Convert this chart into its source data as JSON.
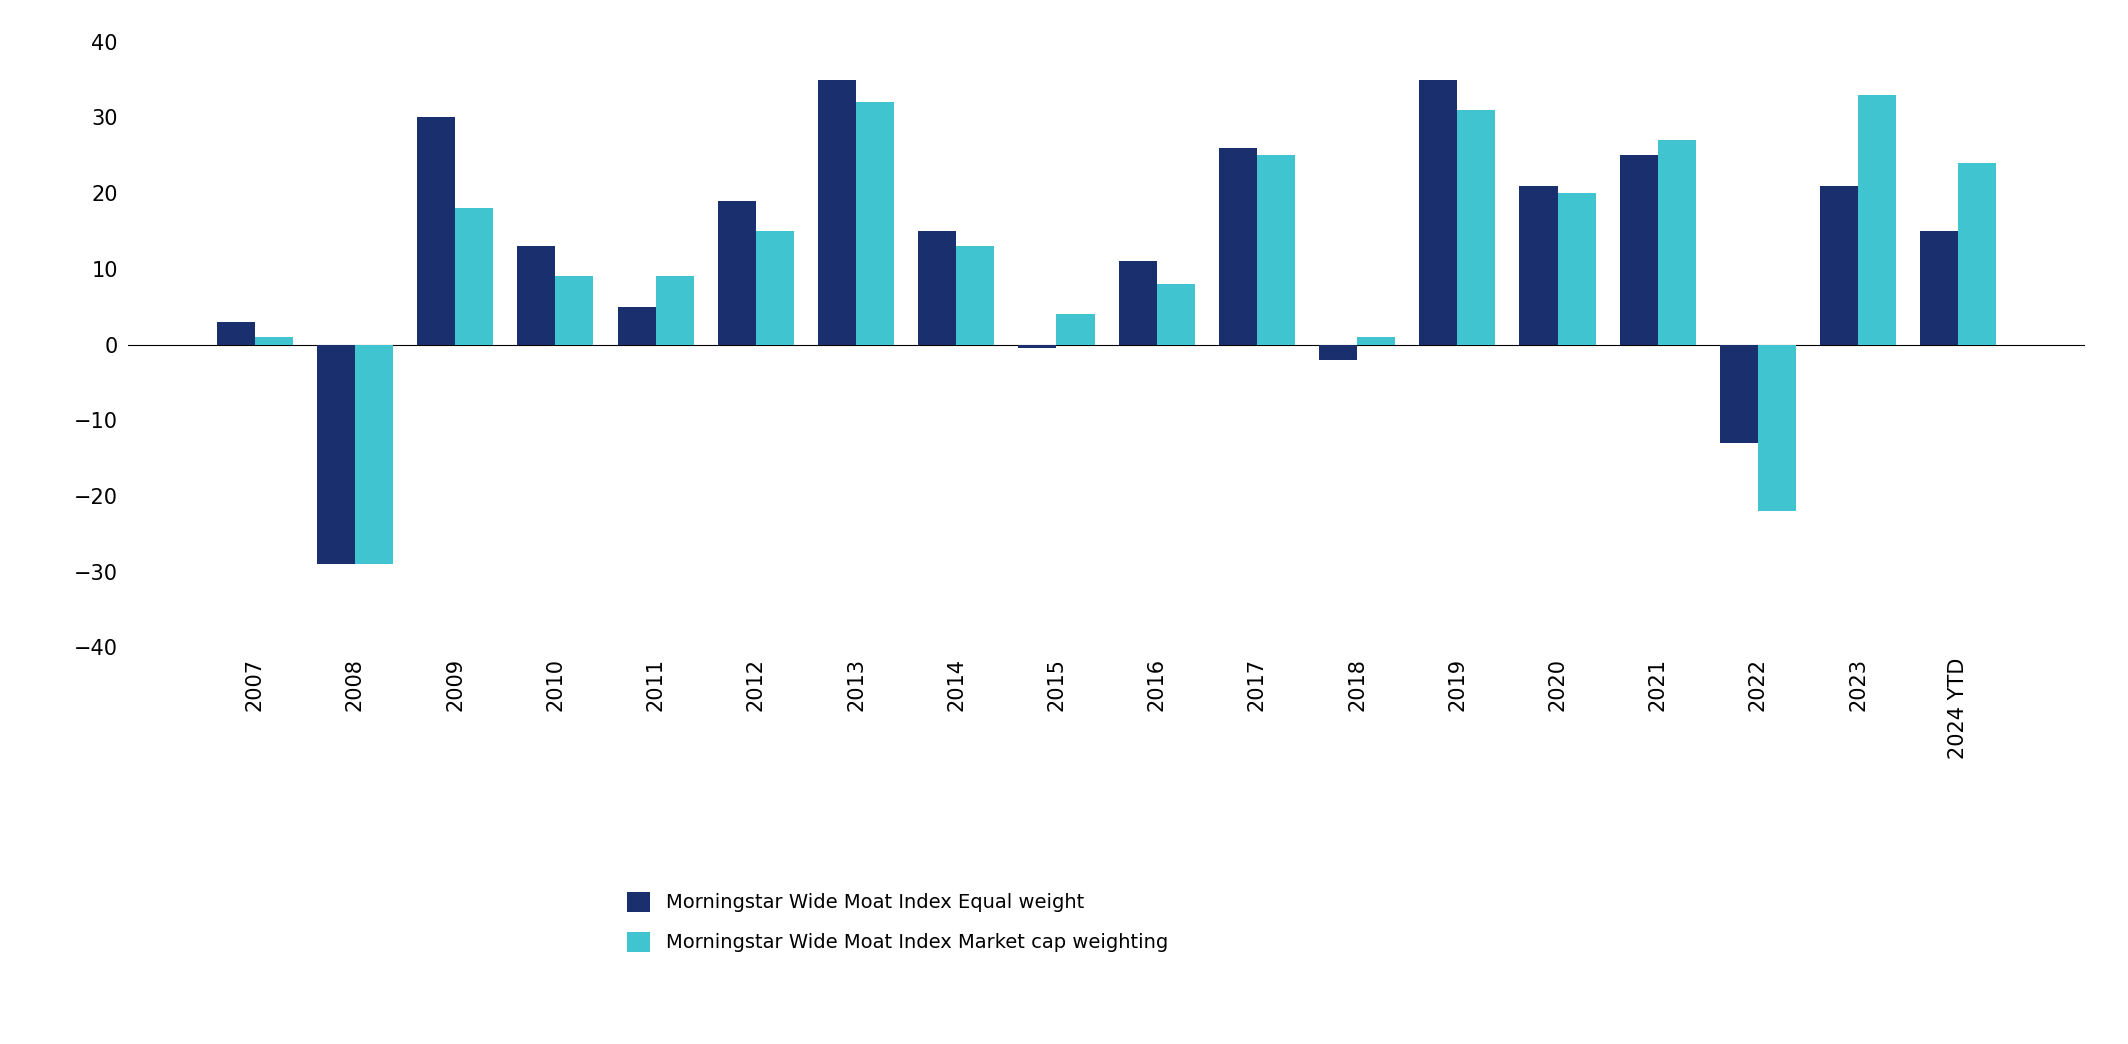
{
  "categories": [
    "2007",
    "2008",
    "2009",
    "2010",
    "2011",
    "2012",
    "2013",
    "2014",
    "2015",
    "2016",
    "2017",
    "2018",
    "2019",
    "2020",
    "2021",
    "2022",
    "2023",
    "2024 YTD"
  ],
  "equal_weight": [
    3,
    -29,
    30,
    13,
    5,
    19,
    35,
    15,
    -0.5,
    11,
    26,
    -2,
    35,
    21,
    25,
    -13,
    21,
    15
  ],
  "market_cap": [
    1,
    -29,
    18,
    9,
    9,
    15,
    32,
    13,
    4,
    8,
    25,
    1,
    31,
    20,
    27,
    -22,
    33,
    24
  ],
  "equal_color": "#1a2f6e",
  "market_color": "#40c4d0",
  "ylim_min": -40,
  "ylim_max": 40,
  "yticks": [
    -40,
    -30,
    -20,
    -10,
    0,
    10,
    20,
    30,
    40
  ],
  "legend_equal": "Morningstar Wide Moat Index Equal weight",
  "legend_market": "Morningstar Wide Moat Index Market cap weighting",
  "bar_width": 0.38,
  "background_color": "#ffffff",
  "tick_fontsize": 15,
  "legend_fontsize": 14
}
